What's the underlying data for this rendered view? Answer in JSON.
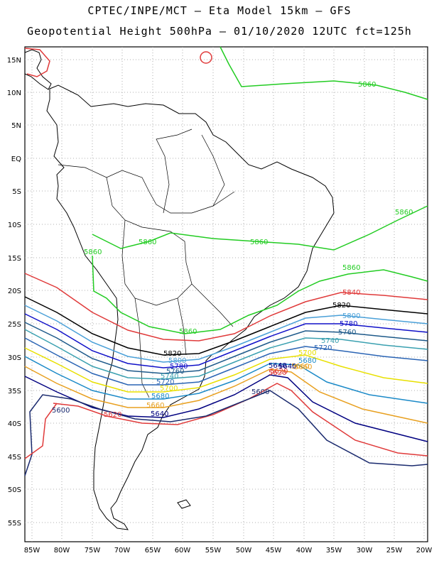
{
  "header": {
    "line1": "CPTEC/INPE/MCT –  Eta Model 15km – GFS",
    "line2": "Geopotential Height 500hPa – 01/10/2020 12UTC fct=125h"
  },
  "axes": {
    "lat_labels": [
      "15N",
      "10N",
      "5N",
      "EQ",
      "5S",
      "10S",
      "15S",
      "20S",
      "25S",
      "30S",
      "35S",
      "40S",
      "45S",
      "50S",
      "55S"
    ],
    "lon_labels": [
      "85W",
      "80W",
      "75W",
      "70W",
      "65W",
      "60W",
      "55W",
      "50W",
      "45W",
      "40W",
      "35W",
      "30W",
      "25W",
      "20W"
    ]
  },
  "colors": {
    "c5600": "#1a2a6e",
    "c5620": "#e03a3a",
    "c5640": "#000080",
    "c5660": "#e8a020",
    "c5680": "#1c8ac8",
    "c5700": "#e8e000",
    "c5720": "#2a64b4",
    "c5740": "#3aa0b0",
    "c5760": "#1e5a8a",
    "c5780": "#1010c8",
    "c5800": "#4aa0d8",
    "c5820": "#000000",
    "c5840": "#e03a3a",
    "c5860": "#22cc22"
  },
  "contour_labels": [
    {
      "text": "5860",
      "color": "c5860"
    },
    {
      "text": "5860",
      "color": "c5860"
    },
    {
      "text": "5860",
      "color": "c5860"
    },
    {
      "text": "5860",
      "color": "c5860"
    },
    {
      "text": "5860",
      "color": "c5860"
    },
    {
      "text": "5860",
      "color": "c5860"
    },
    {
      "text": "5860",
      "color": "c5860"
    },
    {
      "text": "5840",
      "color": "c5840"
    },
    {
      "text": "5820",
      "color": "c5820"
    },
    {
      "text": "5800",
      "color": "c5800"
    },
    {
      "text": "5780",
      "color": "c5780"
    },
    {
      "text": "5760",
      "color": "c5760"
    },
    {
      "text": "5740",
      "color": "c5740"
    },
    {
      "text": "5720",
      "color": "c5720"
    },
    {
      "text": "5700",
      "color": "c5700"
    },
    {
      "text": "5680",
      "color": "c5680"
    },
    {
      "text": "5660",
      "color": "c5660"
    },
    {
      "text": "5640",
      "color": "c5640"
    },
    {
      "text": "5620",
      "color": "c5620"
    },
    {
      "text": "5820",
      "color": "c5820"
    },
    {
      "text": "5800",
      "color": "c5800"
    },
    {
      "text": "5780",
      "color": "c5780"
    },
    {
      "text": "5760",
      "color": "c5760"
    },
    {
      "text": "5740",
      "color": "c5740"
    },
    {
      "text": "5720",
      "color": "c5720"
    },
    {
      "text": "5700",
      "color": "c5700"
    },
    {
      "text": "5680",
      "color": "c5680"
    },
    {
      "text": "5660",
      "color": "c5660"
    },
    {
      "text": "5640",
      "color": "c5640"
    },
    {
      "text": "5600",
      "color": "c5600"
    },
    {
      "text": "5620",
      "color": "c5620"
    },
    {
      "text": "5640",
      "color": "c5640"
    },
    {
      "text": "5660",
      "color": "c5660"
    },
    {
      "text": "5620",
      "color": "c5620"
    },
    {
      "text": "5600",
      "color": "c5600"
    }
  ]
}
